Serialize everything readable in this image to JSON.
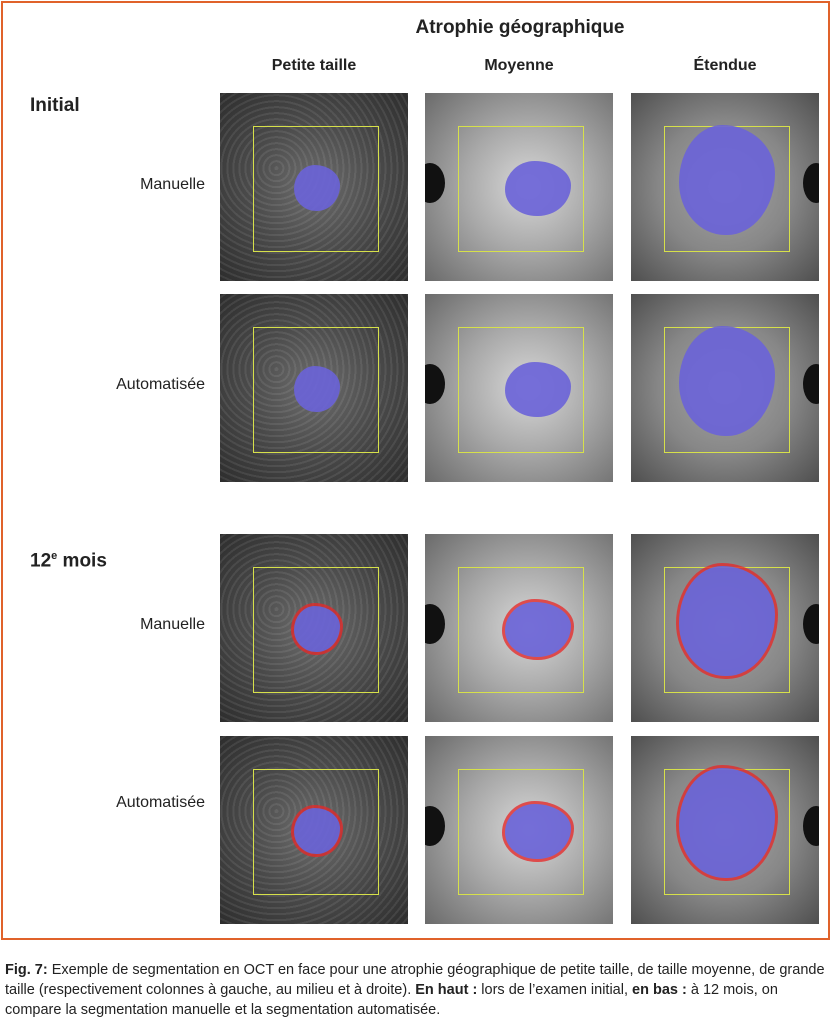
{
  "figure": {
    "title": "Atrophie géographique",
    "columns": [
      "Petite taille",
      "Moyenne",
      "Étendue"
    ],
    "sections": [
      {
        "label": "Initial",
        "sup": "",
        "rows": [
          "Manuelle",
          "Automatisée"
        ]
      },
      {
        "label": "12",
        "sup": "e",
        "label_suffix": " mois",
        "rows": [
          "Manuelle",
          "Automatisée"
        ]
      }
    ],
    "colors": {
      "border": "#e0622a",
      "segmentation": "#6a63d8",
      "progression": "#e62828",
      "roi_box": "#d6e04a"
    }
  },
  "caption": {
    "fig_label": "Fig. 7:",
    "text1": " Exemple de segmentation en OCT en face pour une atrophie géographique de petite taille, de taille moyenne, de grande taille (respectivement colonnes à gauche, au milieu et à droite). ",
    "bold2": "En haut :",
    "text2": " lors de l’examen initial, ",
    "bold3": "en bas :",
    "text3": " à 12 mois, on compare la segmentation manuelle et la segmentation automatisée."
  }
}
